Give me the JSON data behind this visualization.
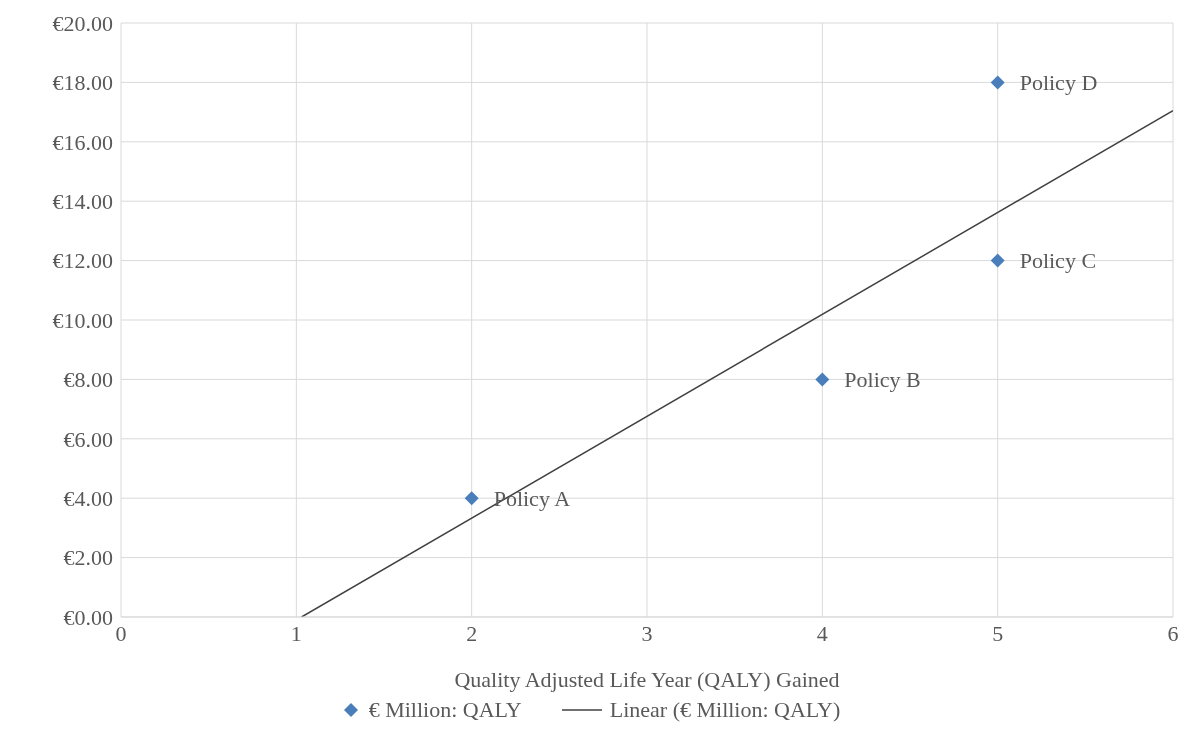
{
  "chart_data": {
    "type": "scatter",
    "xlabel": "Quality Adjusted  Life Year (QALY) Gained",
    "xlim": [
      0,
      6
    ],
    "xticks": [
      0,
      1,
      2,
      3,
      4,
      5,
      6
    ],
    "ylim": [
      0,
      20
    ],
    "yticks": [
      {
        "value": 0,
        "label": "€0.00"
      },
      {
        "value": 2,
        "label": "€2.00"
      },
      {
        "value": 4,
        "label": "€4.00"
      },
      {
        "value": 6,
        "label": "€6.00"
      },
      {
        "value": 8,
        "label": "€8.00"
      },
      {
        "value": 10,
        "label": "€10.00"
      },
      {
        "value": 12,
        "label": "€12.00"
      },
      {
        "value": 14,
        "label": "€14.00"
      },
      {
        "value": 16,
        "label": "€16.00"
      },
      {
        "value": 18,
        "label": "€18.00"
      },
      {
        "value": 20,
        "label": "€20.00"
      }
    ],
    "grid": true,
    "legend": "bottom",
    "series": [
      {
        "name": "€ Million: QALY",
        "type": "scatter",
        "marker": "diamond",
        "color": "#4a7ebb",
        "x": [
          2,
          4,
          5,
          5
        ],
        "values": [
          4,
          8,
          12,
          18
        ]
      },
      {
        "name": "Linear (€ Million: QALY)",
        "type": "line",
        "color": "#404040",
        "line_style": "solid",
        "x": [
          1.03,
          6
        ],
        "values": [
          0,
          17.05
        ]
      }
    ],
    "annotations": [
      {
        "text": "Policy A",
        "x": 2,
        "y": 4
      },
      {
        "text": "Policy B",
        "x": 4,
        "y": 8
      },
      {
        "text": "Policy C",
        "x": 5,
        "y": 12
      },
      {
        "text": "Policy D",
        "x": 5,
        "y": 18
      }
    ]
  }
}
